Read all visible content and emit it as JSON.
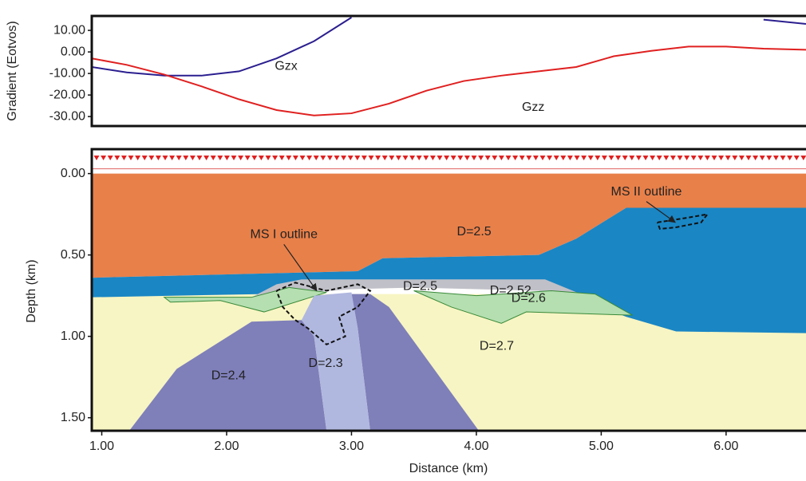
{
  "chart_data": [
    {
      "type": "line",
      "y_label": "Gradient (Eotvos)",
      "x": [
        0.92,
        1.2,
        1.5,
        1.8,
        2.1,
        2.4,
        2.7,
        3.0,
        3.3,
        3.6,
        3.9,
        4.2,
        4.5,
        4.8,
        5.1,
        5.4,
        5.7,
        6.0,
        6.3,
        6.64
      ],
      "series": [
        {
          "name": "Gzx",
          "color": "#2b1f8f",
          "values": [
            -7,
            -9.5,
            -11,
            -11,
            -9,
            -3,
            5,
            16,
            null,
            null,
            null,
            null,
            null,
            null,
            null,
            null,
            null,
            null,
            15,
            13
          ]
        },
        {
          "name": "Gzz",
          "color": "#e02020",
          "values": [
            -3,
            -6,
            -10.5,
            -16,
            -22,
            -27,
            -29.5,
            -28.5,
            -24,
            -18,
            -13.5,
            -11,
            -9,
            -7,
            -2,
            0.5,
            2.5,
            2.5,
            1.5,
            1
          ]
        }
      ],
      "xlim": [
        0.92,
        6.64
      ],
      "ylim": [
        -34.4,
        16.7
      ],
      "yticks": [
        {
          "value": 10,
          "label": "10.00"
        },
        {
          "value": 0,
          "label": "0.00"
        },
        {
          "value": -10,
          "label": "-10.00"
        },
        {
          "value": -20,
          "label": "-20.00"
        },
        {
          "value": -30,
          "label": "-30.00"
        }
      ]
    },
    {
      "type": "section",
      "x_label": "Distance (km)",
      "y_label": "Depth (km)",
      "xlim": [
        0.92,
        6.64
      ],
      "ylim": [
        1.58,
        -0.15
      ],
      "xticks": [
        {
          "value": 1,
          "label": "1.00"
        },
        {
          "value": 2,
          "label": "2.00"
        },
        {
          "value": 3,
          "label": "3.00"
        },
        {
          "value": 4,
          "label": "4.00"
        },
        {
          "value": 5,
          "label": "5.00"
        },
        {
          "value": 6,
          "label": "6.00"
        }
      ],
      "yticks": [
        {
          "value": 0,
          "label": "0.00"
        },
        {
          "value": 0.5,
          "label": "0.50"
        },
        {
          "value": 1,
          "label": "1.00"
        },
        {
          "value": 1.5,
          "label": "1.50"
        }
      ],
      "bodies": [
        {
          "label": "D=2.7",
          "color": "#f7f5c3",
          "x": [
            0.92,
            6.64,
            6.64,
            0.92
          ],
          "depth": [
            0.74,
            0.74,
            1.58,
            1.58
          ]
        },
        {
          "label": "D=2.5",
          "color": "#e8804a",
          "x": [
            0.92,
            6.64,
            6.64,
            5.2,
            4.8,
            4.5,
            3.9,
            3.25,
            3.05,
            0.92
          ],
          "depth": [
            0,
            0,
            0.21,
            0.21,
            0.4,
            0.5,
            0.51,
            0.52,
            0.6,
            0.64
          ]
        },
        {
          "label": "D=2.6",
          "color": "#1a86c4",
          "x": [
            0.92,
            3.05,
            3.25,
            3.9,
            4.5,
            4.8,
            5.2,
            6.64,
            6.64,
            5.6,
            5.2,
            4.6,
            3.0,
            2.3,
            0.92
          ],
          "depth": [
            0.64,
            0.6,
            0.52,
            0.51,
            0.5,
            0.4,
            0.21,
            0.21,
            0.98,
            0.97,
            0.88,
            0.7,
            0.68,
            0.74,
            0.76
          ]
        },
        {
          "label": "D=2.5",
          "color": "#c0c0c8",
          "x": [
            2.2,
            2.4,
            2.6,
            4.55,
            5.25,
            5.0,
            4.5,
            3.5,
            3.0,
            2.5
          ],
          "depth": [
            0.76,
            0.68,
            0.65,
            0.65,
            0.87,
            0.86,
            0.72,
            0.7,
            0.71,
            0.74
          ]
        },
        {
          "label": "D=2.52",
          "color": "#b5dfb0",
          "x": [
            3.5,
            4.0,
            4.6,
            4.95,
            5.25,
            4.4,
            4.2,
            3.8
          ],
          "depth": [
            0.72,
            0.75,
            0.72,
            0.74,
            0.87,
            0.85,
            0.92,
            0.82
          ]
        },
        {
          "color": "#b5dfb0",
          "x": [
            1.5,
            2.2,
            2.5,
            2.8,
            2.3,
            1.95,
            1.55
          ],
          "depth": [
            0.76,
            0.76,
            0.7,
            0.73,
            0.85,
            0.78,
            0.79
          ]
        },
        {
          "label": "D=2.4",
          "color": "#7f7fba",
          "x": [
            1.22,
            1.6,
            2.2,
            2.6,
            2.7,
            2.8,
            2.8,
            1.22
          ],
          "depth": [
            1.58,
            1.2,
            0.91,
            0.9,
            1.0,
            1.58,
            1.58,
            1.58
          ]
        },
        {
          "color": "#7f7fba",
          "x": [
            3.0,
            3.15,
            3.3,
            4.02,
            3.15,
            3.05
          ],
          "depth": [
            0.74,
            0.74,
            0.82,
            1.58,
            1.58,
            0.95
          ]
        },
        {
          "label": "D=2.3",
          "color": "#b0b8e0",
          "x": [
            2.6,
            2.7,
            3.0,
            3.05,
            3.15,
            2.8,
            2.7
          ],
          "depth": [
            0.9,
            0.75,
            0.73,
            0.95,
            1.58,
            1.58,
            1.0
          ]
        }
      ],
      "outlines": [
        {
          "label": "MS I outline",
          "x": [
            2.4,
            2.55,
            2.8,
            3.05,
            3.15,
            3.05,
            2.9,
            2.95,
            2.8,
            2.65,
            2.55,
            2.45,
            2.4
          ],
          "depth": [
            0.72,
            0.67,
            0.72,
            0.68,
            0.72,
            0.82,
            0.88,
            1.0,
            1.05,
            0.95,
            0.9,
            0.82,
            0.72
          ]
        },
        {
          "label": "MS II outline",
          "x": [
            5.45,
            5.7,
            5.85,
            5.8,
            5.6,
            5.47,
            5.45
          ],
          "depth": [
            0.3,
            0.27,
            0.25,
            0.3,
            0.33,
            0.34,
            0.3
          ]
        }
      ]
    }
  ]
}
